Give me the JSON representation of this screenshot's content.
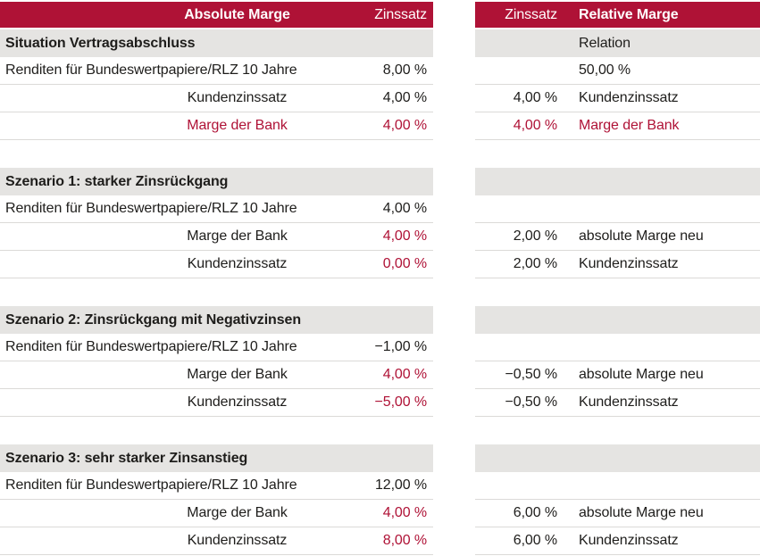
{
  "colors": {
    "accent_red": "#af1236",
    "band_gray": "#e5e4e2",
    "separator": "#dbdad8",
    "text": "#1e1d1b"
  },
  "left": {
    "header": {
      "label": "Absolute Marge",
      "value": "Zinssatz"
    },
    "blocks": [
      {
        "title": "Situation Vertragsabschluss",
        "rows": [
          {
            "label": "Renditen für Bundeswertpapiere/RLZ 10 Jahre",
            "value": "8,00 %"
          },
          {
            "label": "Kundenzinssatz",
            "value": "4,00 %"
          },
          {
            "label": "Marge der Bank",
            "value": "4,00 %"
          }
        ]
      },
      {
        "title": "Szenario 1: starker Zinsrückgang",
        "rows": [
          {
            "label": "Renditen für Bundeswertpapiere/RLZ 10 Jahre",
            "value": "4,00 %"
          },
          {
            "label": "Marge der Bank",
            "value": "4,00 %"
          },
          {
            "label": "Kundenzinssatz",
            "value": "0,00 %"
          }
        ]
      },
      {
        "title": "Szenario 2: Zinsrückgang mit Negativzinsen",
        "rows": [
          {
            "label": "Renditen für Bundeswertpapiere/RLZ 10 Jahre",
            "value": "−1,00 %"
          },
          {
            "label": "Marge der Bank",
            "value": "4,00 %"
          },
          {
            "label": "Kundenzinssatz",
            "value": "−5,00 %"
          }
        ]
      },
      {
        "title": "Szenario 3: sehr starker Zinsanstieg",
        "rows": [
          {
            "label": "Renditen für Bundeswertpapiere/RLZ 10 Jahre",
            "value": "12,00 %"
          },
          {
            "label": "Marge der Bank",
            "value": "4,00 %"
          },
          {
            "label": "Kundenzinssatz",
            "value": "8,00 %"
          }
        ]
      }
    ]
  },
  "right": {
    "header": {
      "value": "Zinssatz",
      "label": "Relative Marge"
    },
    "blocks": [
      {
        "band_label": "Relation",
        "rows": [
          {
            "value": "",
            "label": "50,00 %"
          },
          {
            "value": "4,00 %",
            "label": "Kundenzinssatz"
          },
          {
            "value": "4,00 %",
            "label": "Marge der Bank"
          }
        ]
      },
      {
        "band_label": "",
        "rows": [
          {
            "value": "",
            "label": ""
          },
          {
            "value": "2,00 %",
            "label": "absolute Marge neu"
          },
          {
            "value": "2,00 %",
            "label": "Kundenzinssatz"
          }
        ]
      },
      {
        "band_label": "",
        "rows": [
          {
            "value": "",
            "label": ""
          },
          {
            "value": "−0,50 %",
            "label": "absolute Marge neu"
          },
          {
            "value": "−0,50 %",
            "label": "Kundenzinssatz"
          }
        ]
      },
      {
        "band_label": "",
        "rows": [
          {
            "value": "",
            "label": ""
          },
          {
            "value": "6,00 %",
            "label": "absolute Marge neu"
          },
          {
            "value": "6,00 %",
            "label": "Kundenzinssatz"
          }
        ]
      }
    ]
  }
}
